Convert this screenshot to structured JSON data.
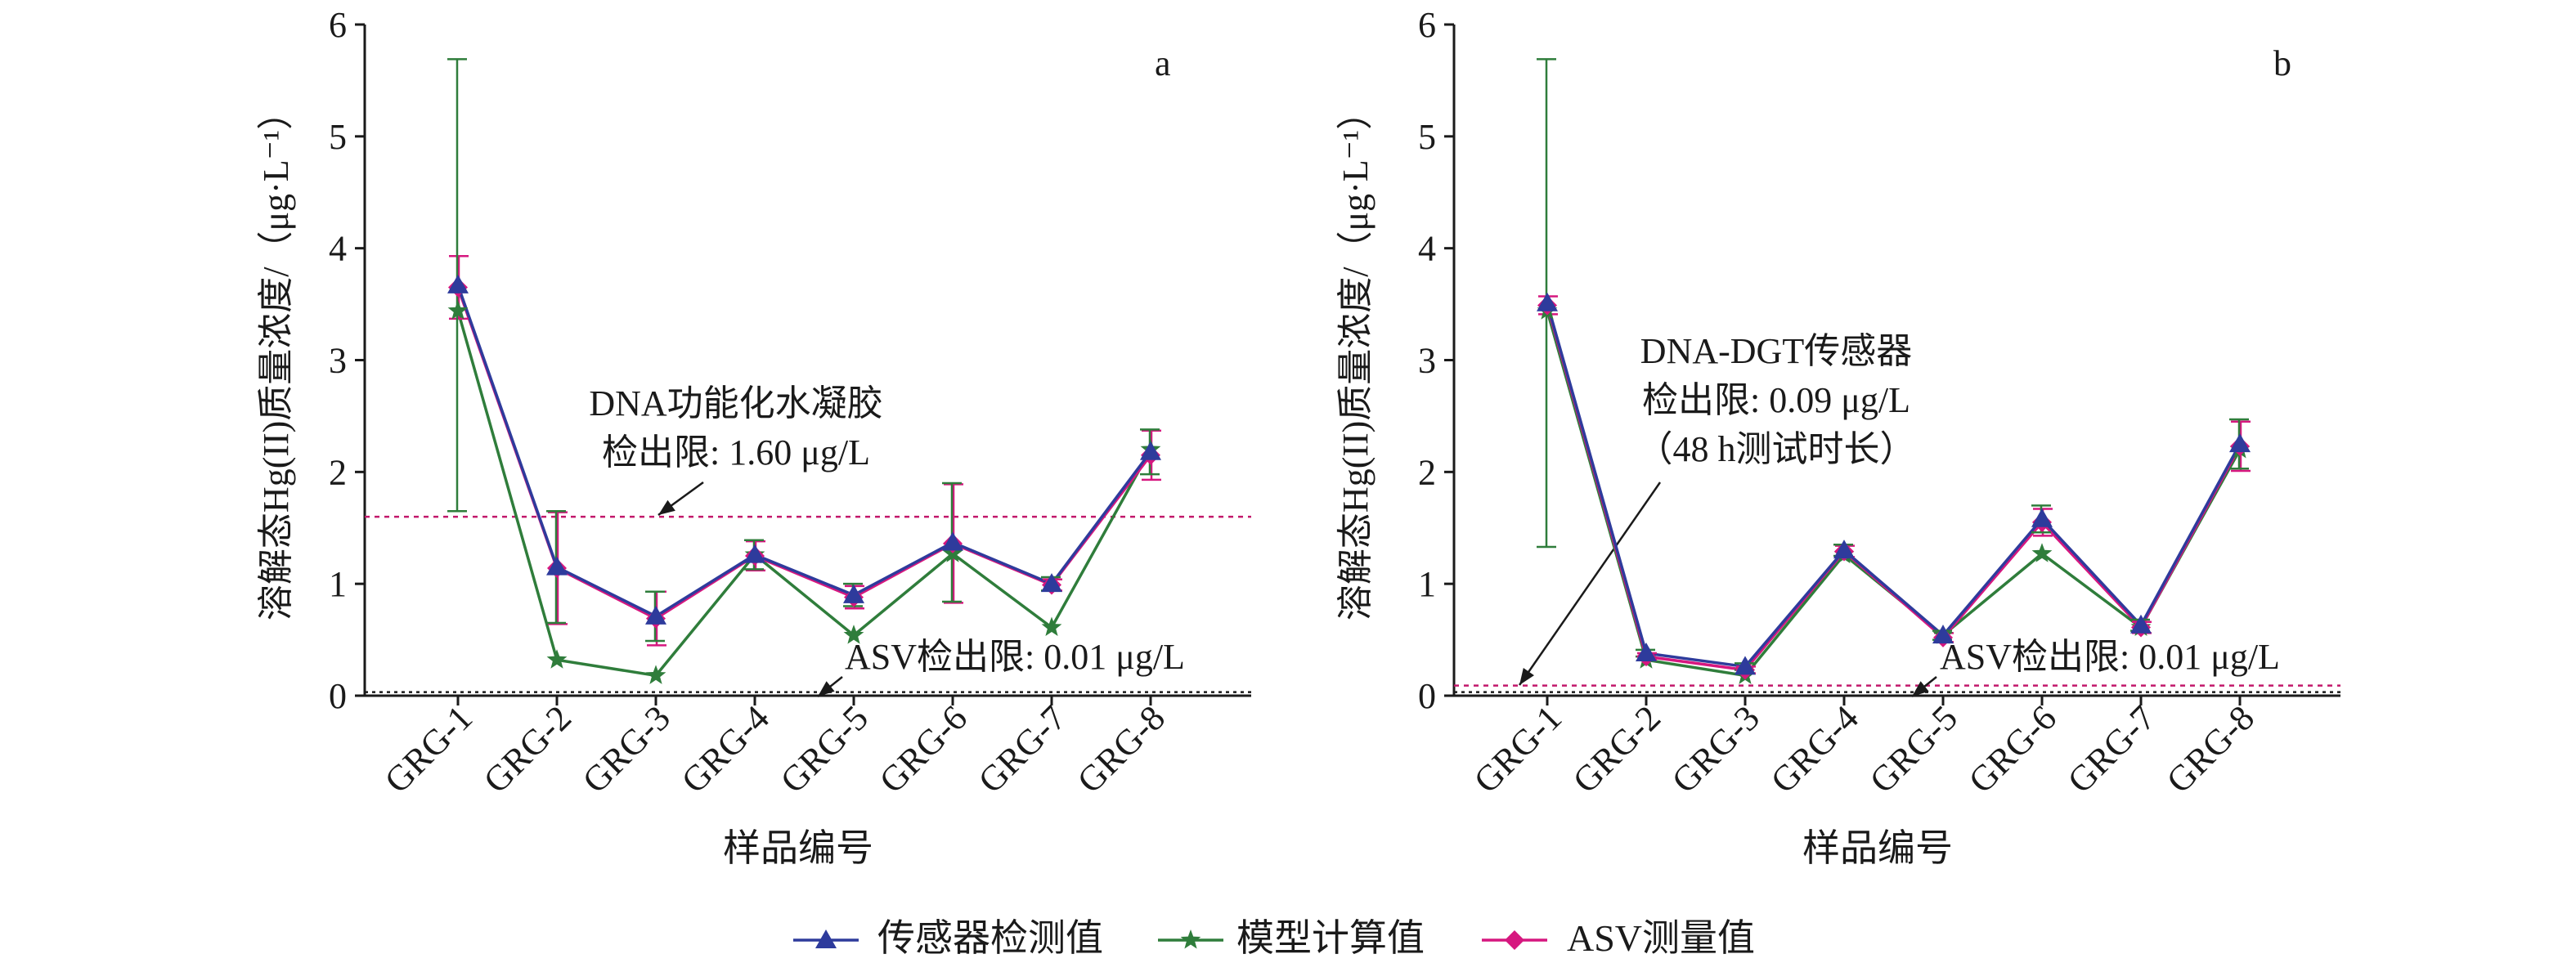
{
  "colors": {
    "sensor": "#2e3b9c",
    "model": "#2f7d3b",
    "asv": "#d6177f",
    "axis": "#1a1a1a",
    "limit": "#c2186b",
    "asv_limit": "#1a1a1a"
  },
  "legend": {
    "items": [
      {
        "label": "传感器检测值",
        "color": "#2e3b9c",
        "marker": "triangle"
      },
      {
        "label": "模型计算值",
        "color": "#2f7d3b",
        "marker": "star"
      },
      {
        "label": "ASV测量值",
        "color": "#d6177f",
        "marker": "diamond"
      }
    ]
  },
  "chart_data": [
    {
      "type": "line",
      "panel_label": "a",
      "xlabel": "样品编号",
      "ylabel": "溶解态Hg(II)质量浓度/（μg·L⁻¹）",
      "ylim": [
        0,
        6
      ],
      "yticks": [
        0,
        1,
        2,
        3,
        4,
        5,
        6
      ],
      "categories": [
        "GRG-1",
        "GRG-2",
        "GRG-3",
        "GRG-4",
        "GRG-5",
        "GRG-6",
        "GRG-7",
        "GRG-8"
      ],
      "series": [
        {
          "name": "传感器检测值",
          "values": [
            3.67,
            1.15,
            0.71,
            1.26,
            0.9,
            1.37,
            1.0,
            2.18
          ],
          "error": [
            2.02,
            0.5,
            0.22,
            0.13,
            0.1,
            0.53,
            0.06,
            0.2
          ]
        },
        {
          "name": "模型计算值",
          "values": [
            3.44,
            0.32,
            0.18,
            1.26,
            0.54,
            1.27,
            0.61,
            2.2
          ]
        },
        {
          "name": "ASV测量值",
          "values": [
            3.65,
            1.14,
            0.69,
            1.25,
            0.88,
            1.36,
            0.99,
            2.15
          ],
          "error": [
            0.28,
            0.5,
            0.24,
            0.13,
            0.1,
            0.53,
            0.05,
            0.22
          ]
        }
      ],
      "limit_line": {
        "value": 1.6,
        "text_line1": "DNA功能化水凝胶",
        "text_line2": "检出限: 1.60 μg/L"
      },
      "asv_line": {
        "value": 0.01,
        "text": "ASV检出限: 0.01 μg/L"
      }
    },
    {
      "type": "line",
      "panel_label": "b",
      "xlabel": "样品编号",
      "ylabel": "溶解态Hg(II)质量浓度/（μg·L⁻¹）",
      "ylim": [
        0,
        6
      ],
      "yticks": [
        0,
        1,
        2,
        3,
        4,
        5,
        6
      ],
      "categories": [
        "GRG-1",
        "GRG-2",
        "GRG-3",
        "GRG-4",
        "GRG-5",
        "GRG-6",
        "GRG-7",
        "GRG-8"
      ],
      "series": [
        {
          "name": "传感器检测值",
          "values": [
            3.51,
            0.38,
            0.26,
            1.3,
            0.54,
            1.58,
            0.63,
            2.25
          ],
          "error": [
            2.18,
            0.03,
            0.03,
            0.05,
            0.04,
            0.12,
            0.05,
            0.22
          ]
        },
        {
          "name": "模型计算值",
          "values": [
            3.44,
            0.32,
            0.18,
            1.26,
            0.54,
            1.27,
            0.61,
            2.2
          ]
        },
        {
          "name": "ASV测量值",
          "values": [
            3.49,
            0.35,
            0.23,
            1.29,
            0.52,
            1.55,
            0.61,
            2.23
          ],
          "error": [
            0.08,
            0.03,
            0.03,
            0.05,
            0.04,
            0.12,
            0.05,
            0.22
          ]
        }
      ],
      "limit_line": {
        "value": 0.09,
        "text_line1": "DNA-DGT传感器",
        "text_line2": "检出限: 0.09 μg/L",
        "text_line3": "（48 h测试时长）"
      },
      "asv_line": {
        "value": 0.01,
        "text": "ASV检出限: 0.01 μg/L"
      }
    }
  ]
}
